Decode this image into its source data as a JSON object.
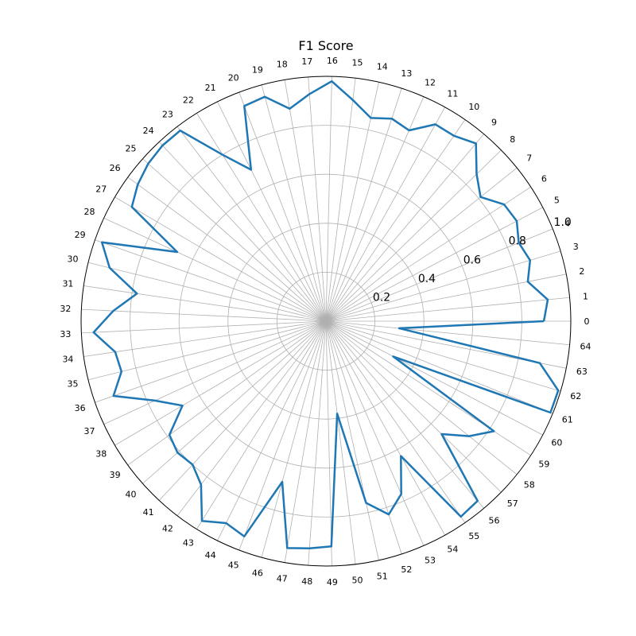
{
  "chart_data": {
    "type": "radar",
    "title": "F1 Score",
    "categories": [
      "0",
      "1",
      "2",
      "3",
      "4",
      "5",
      "6",
      "7",
      "8",
      "9",
      "10",
      "11",
      "12",
      "13",
      "14",
      "15",
      "16",
      "17",
      "18",
      "19",
      "20",
      "21",
      "22",
      "23",
      "24",
      "25",
      "26",
      "27",
      "28",
      "29",
      "30",
      "31",
      "32",
      "33",
      "34",
      "35",
      "36",
      "37",
      "38",
      "39",
      "40",
      "41",
      "42",
      "43",
      "44",
      "45",
      "46",
      "47",
      "48",
      "49",
      "50",
      "51",
      "52",
      "53",
      "54",
      "55",
      "56",
      "57",
      "58",
      "59",
      "60",
      "61",
      "62",
      "63",
      "64"
    ],
    "rlim": [
      0,
      1.0
    ],
    "rticks": [
      0.2,
      0.4,
      0.6,
      0.8,
      1.0
    ],
    "rtick_labels": [
      "0.2",
      "0.4",
      "0.6",
      "0.8",
      "1.0"
    ],
    "grid": true,
    "series": [
      {
        "color": "#1f77b4",
        "values": [
          0.89,
          0.91,
          0.84,
          0.87,
          0.85,
          0.88,
          0.87,
          0.81,
          0.86,
          0.95,
          0.92,
          0.92,
          0.85,
          0.87,
          0.85,
          0.91,
          0.98,
          0.93,
          0.88,
          0.95,
          0.94,
          0.69,
          0.8,
          0.98,
          0.98,
          0.97,
          0.95,
          0.92,
          0.67,
          0.97,
          0.91,
          0.78,
          0.87,
          0.95,
          0.87,
          0.86,
          0.92,
          0.77,
          0.68,
          0.79,
          0.81,
          0.8,
          0.84,
          0.96,
          0.92,
          0.94,
          0.68,
          0.94,
          0.93,
          0.92,
          0.38,
          0.76,
          0.83,
          0.77,
          0.63,
          0.97,
          0.96,
          0.66,
          0.75,
          0.82,
          0.31,
          0.99,
          0.99,
          0.89,
          0.3
        ]
      }
    ]
  }
}
